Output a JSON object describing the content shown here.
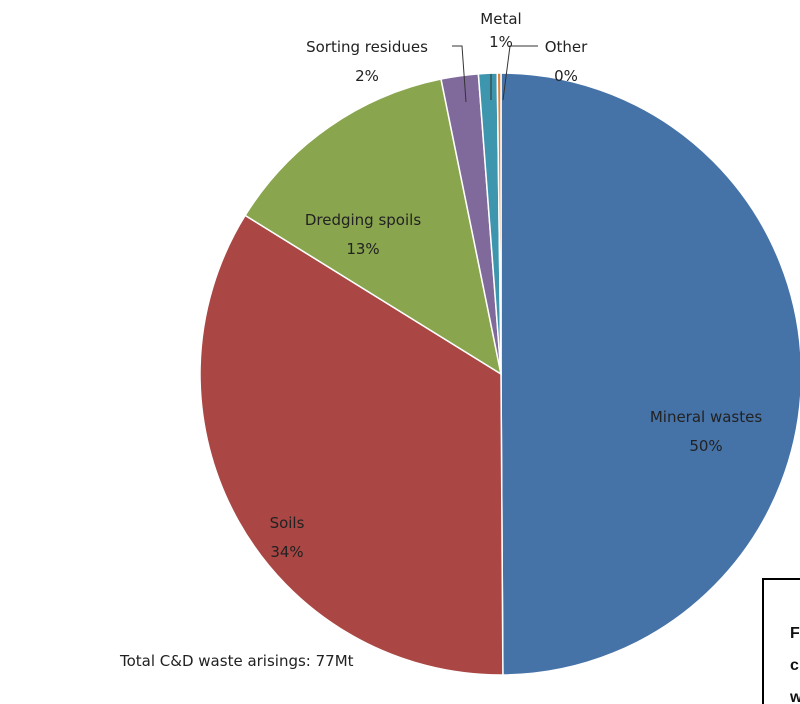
{
  "chart_data": {
    "type": "pie",
    "start_angle_deg": 0,
    "direction": "clockwise",
    "slices": [
      {
        "label": "Mineral wastes",
        "percent_label": "50%",
        "value": 50,
        "color": "#4572A7"
      },
      {
        "label": "Soils",
        "percent_label": "34%",
        "value": 34,
        "color": "#AA4643"
      },
      {
        "label": "Dredging spoils",
        "percent_label": "13%",
        "value": 13,
        "color": "#89A54E"
      },
      {
        "label": "Sorting residues",
        "percent_label": "2%",
        "value": 2,
        "color": "#80699B"
      },
      {
        "label": "Metal",
        "percent_label": "1%",
        "value": 1,
        "color": "#3D96AE"
      },
      {
        "label": "Other",
        "percent_label": "0%",
        "value": 0.2,
        "color": "#DB843D"
      }
    ]
  },
  "note": {
    "total": "Total C&D waste arisings: 77Mt"
  },
  "caption": {
    "lines": [
      "F",
      "c",
      "w"
    ]
  }
}
